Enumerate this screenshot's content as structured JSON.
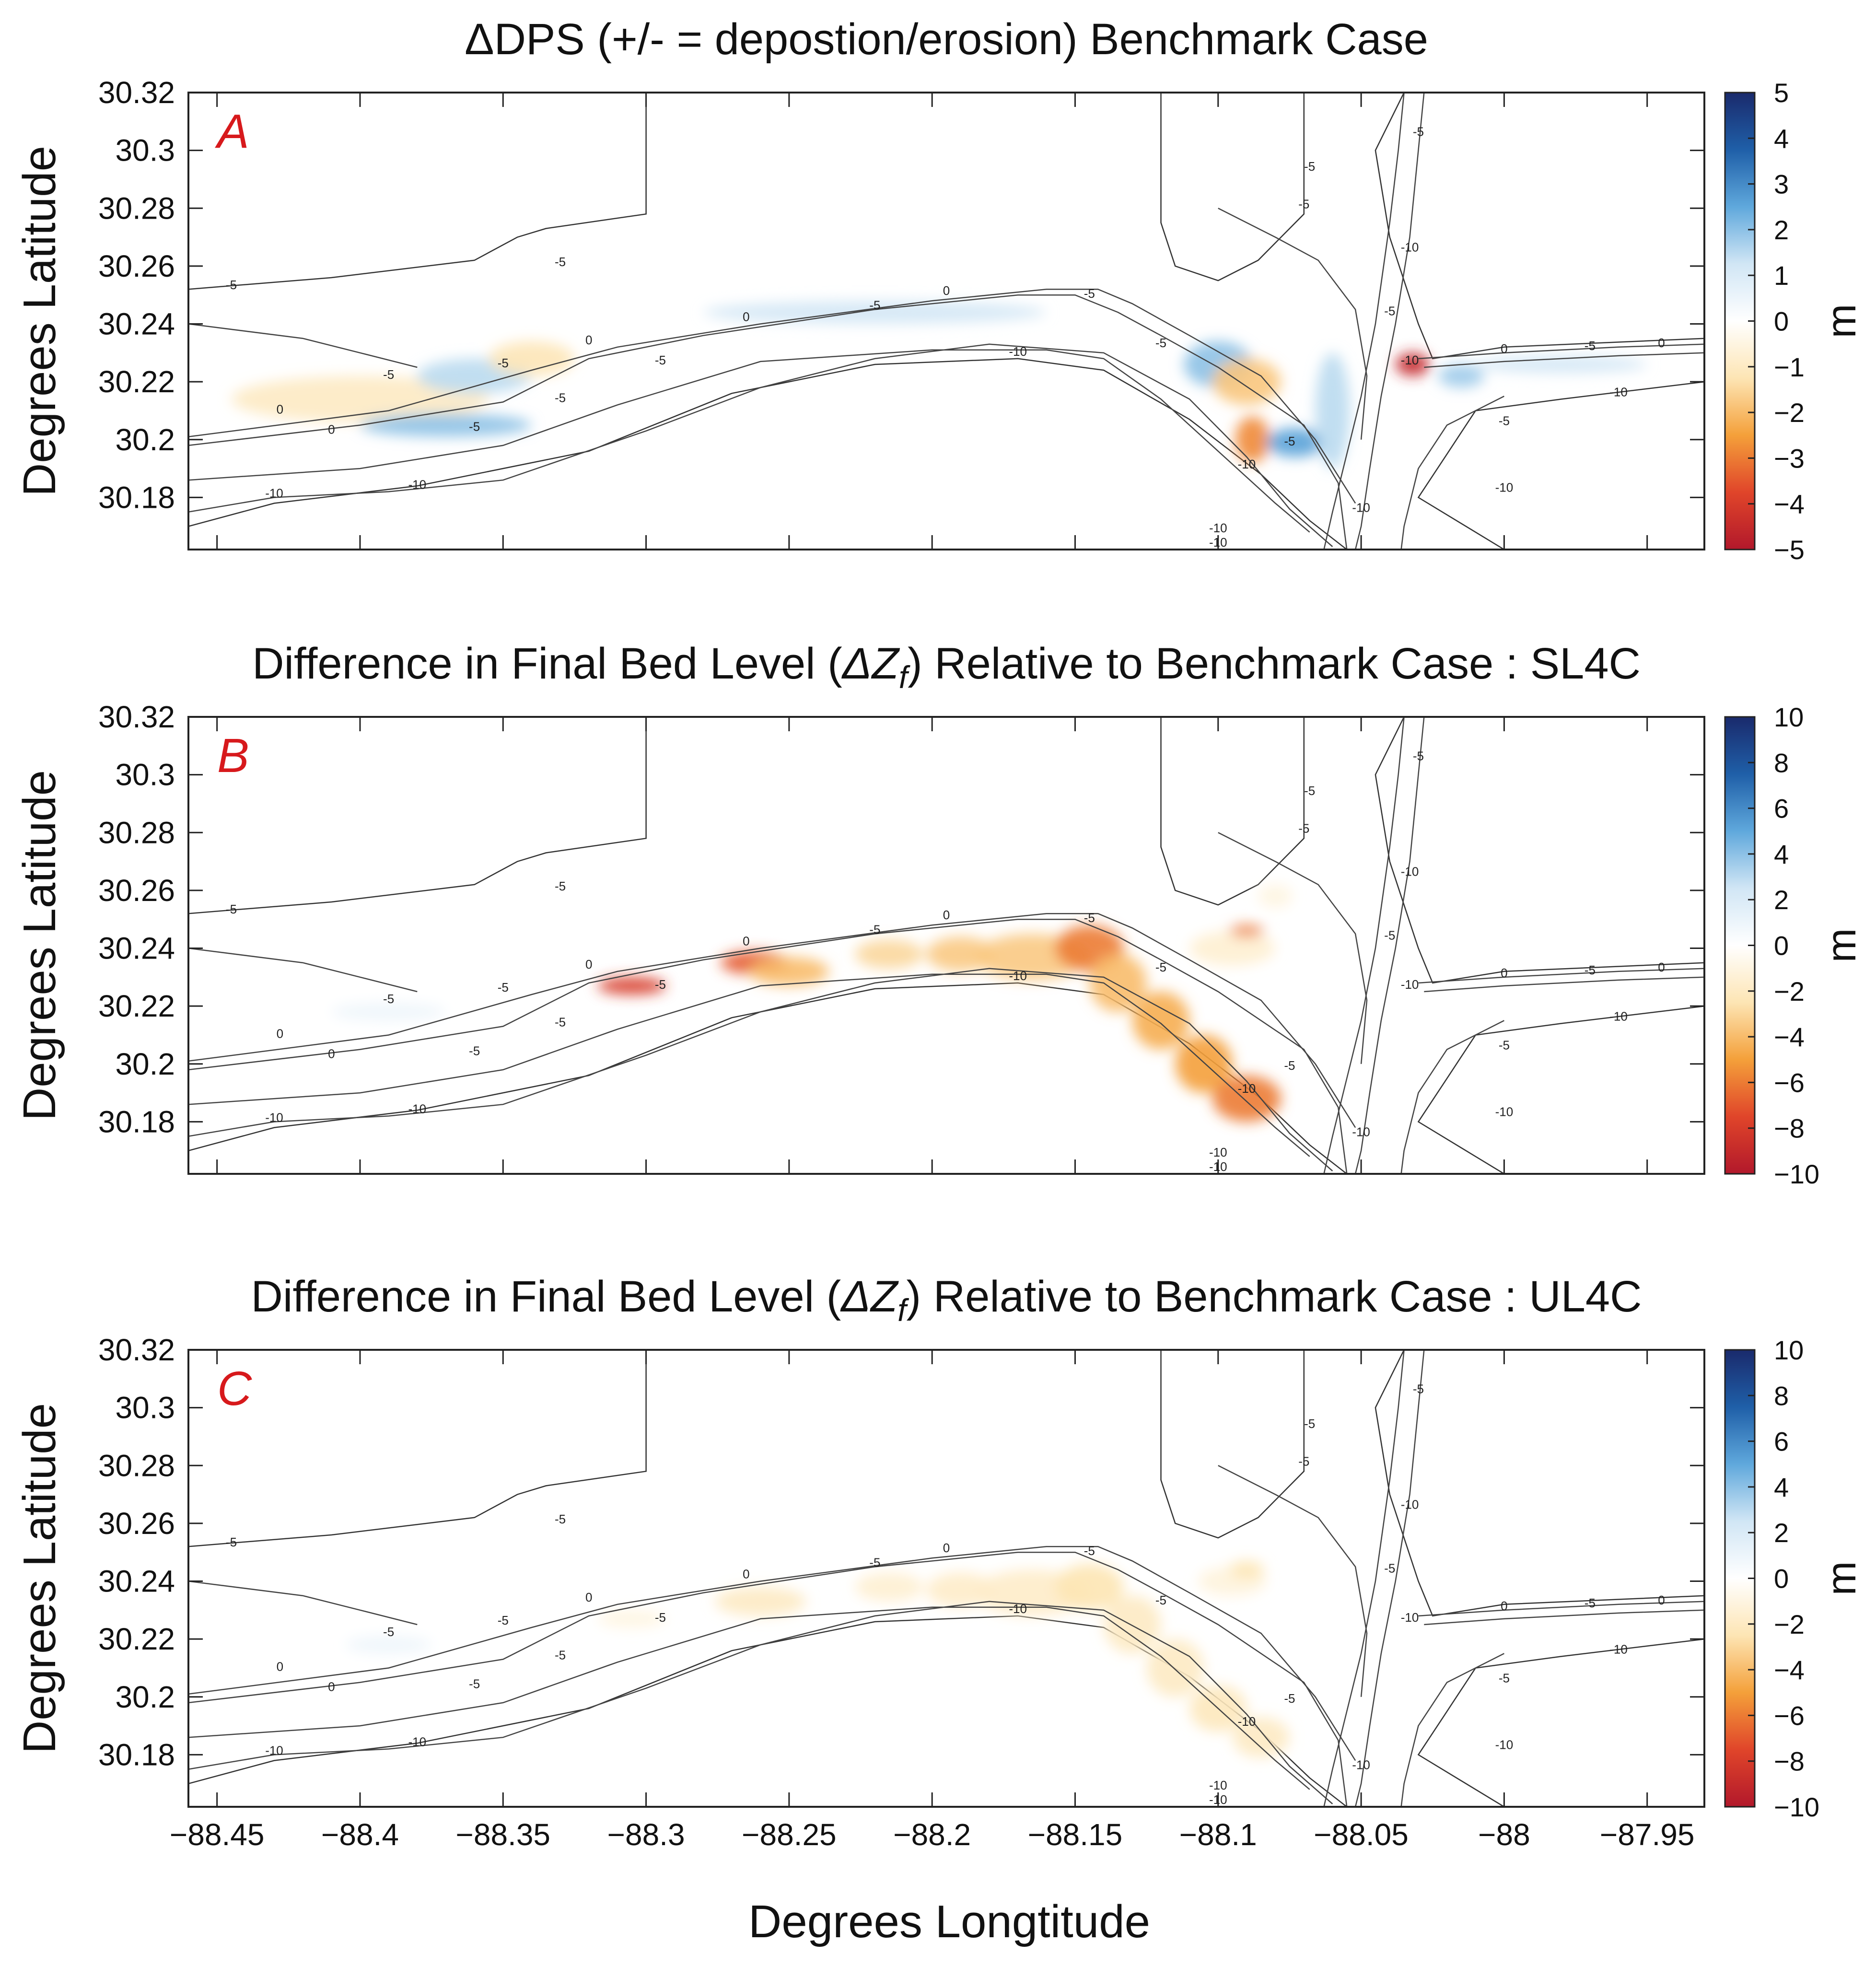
{
  "figure": {
    "x_axis_label": "Degrees Longtitude"
  },
  "chart_data": [
    {
      "type": "heatmap",
      "panel_letter": "A",
      "title_parts": [
        "ΔDPS (+/- = depostion/erosion) Benchmark Case"
      ],
      "ylabel": "Degrees Latitude",
      "xlabel": "Degrees Longtitude",
      "xlim": [
        -88.46,
        -87.93
      ],
      "ylim": [
        30.162,
        30.32
      ],
      "x_ticks": [
        -88.45,
        -88.4,
        -88.35,
        -88.3,
        -88.25,
        -88.2,
        -88.15,
        -88.1,
        -88.05,
        -88,
        -87.95
      ],
      "x_tick_labels": [
        "−88.45",
        "−88.4",
        "−88.35",
        "−88.3",
        "−88.25",
        "−88.2",
        "−88.15",
        "−88.1",
        "−88.05",
        "−88",
        "−87.95"
      ],
      "y_ticks": [
        30.32,
        30.3,
        30.28,
        30.26,
        30.24,
        30.22,
        30.2,
        30.18
      ],
      "y_tick_labels": [
        "30.32",
        "30.3",
        "30.28",
        "30.26",
        "30.24",
        "30.22",
        "30.2",
        "30.18"
      ],
      "show_x_tick_labels": false,
      "colorbar": {
        "label": "m",
        "min": -5,
        "max": 5,
        "ticks": [
          5,
          4,
          3,
          2,
          1,
          0,
          -1,
          -2,
          -3,
          -4,
          -5
        ],
        "tick_labels": [
          "5",
          "4",
          "3",
          "2",
          "1",
          "0",
          "−1",
          "−2",
          "−3",
          "−4",
          "−5"
        ],
        "colormap": [
          "#b2182b",
          "#e0452a",
          "#f4a03a",
          "#fde5b4",
          "#ffffff",
          "#d1e6f5",
          "#5fa8dc",
          "#1f5fa8",
          "#1a2a6c"
        ]
      },
      "patches": [
        {
          "lon": -88.4,
          "lat": 30.214,
          "value": -1.0,
          "spread_lon": 0.045,
          "spread_lat": 0.008
        },
        {
          "lon": -88.36,
          "lat": 30.222,
          "value": 1.5,
          "spread_lon": 0.02,
          "spread_lat": 0.006
        },
        {
          "lon": -88.34,
          "lat": 30.228,
          "value": -1.2,
          "spread_lon": 0.015,
          "spread_lat": 0.006
        },
        {
          "lon": -88.37,
          "lat": 30.205,
          "value": 2.0,
          "spread_lon": 0.03,
          "spread_lat": 0.004
        },
        {
          "lon": -88.22,
          "lat": 30.244,
          "value": 1.2,
          "spread_lon": 0.06,
          "spread_lat": 0.004
        },
        {
          "lon": -88.1,
          "lat": 30.226,
          "value": 2.0,
          "spread_lon": 0.012,
          "spread_lat": 0.008
        },
        {
          "lon": -88.09,
          "lat": 30.22,
          "value": -1.8,
          "spread_lon": 0.012,
          "spread_lat": 0.008
        },
        {
          "lon": -88.088,
          "lat": 30.2,
          "value": -2.8,
          "spread_lon": 0.006,
          "spread_lat": 0.008
        },
        {
          "lon": -88.073,
          "lat": 30.199,
          "value": 2.6,
          "spread_lon": 0.01,
          "spread_lat": 0.005
        },
        {
          "lon": -88.06,
          "lat": 30.21,
          "value": 1.5,
          "spread_lon": 0.006,
          "spread_lat": 0.02
        },
        {
          "lon": -88.032,
          "lat": 30.226,
          "value": -4.5,
          "spread_lon": 0.006,
          "spread_lat": 0.004
        },
        {
          "lon": -88.015,
          "lat": 30.222,
          "value": 1.8,
          "spread_lon": 0.008,
          "spread_lat": 0.004
        },
        {
          "lon": -87.98,
          "lat": 30.226,
          "value": 1.2,
          "spread_lon": 0.03,
          "spread_lat": 0.003
        }
      ]
    },
    {
      "type": "heatmap",
      "panel_letter": "B",
      "title_parts": [
        "Difference in Final Bed Level (",
        "ΔZ",
        "f",
        ") Relative to Benchmark Case : SL4C"
      ],
      "ylabel": "Degrees Latitude",
      "xlabel": "Degrees Longtitude",
      "xlim": [
        -88.46,
        -87.93
      ],
      "ylim": [
        30.162,
        30.32
      ],
      "x_ticks": [
        -88.45,
        -88.4,
        -88.35,
        -88.3,
        -88.25,
        -88.2,
        -88.15,
        -88.1,
        -88.05,
        -88,
        -87.95
      ],
      "x_tick_labels": [
        "−88.45",
        "−88.4",
        "−88.35",
        "−88.3",
        "−88.25",
        "−88.2",
        "−88.15",
        "−88.1",
        "−88.05",
        "−88",
        "−87.95"
      ],
      "y_ticks": [
        30.32,
        30.3,
        30.28,
        30.26,
        30.24,
        30.22,
        30.2,
        30.18
      ],
      "y_tick_labels": [
        "30.32",
        "30.3",
        "30.28",
        "30.26",
        "30.24",
        "30.22",
        "30.2",
        "30.18"
      ],
      "show_x_tick_labels": false,
      "colorbar": {
        "label": "m",
        "min": -10,
        "max": 10,
        "ticks": [
          10,
          8,
          6,
          4,
          2,
          0,
          -2,
          -4,
          -6,
          -8,
          -10
        ],
        "tick_labels": [
          "10",
          "8",
          "6",
          "4",
          "2",
          "0",
          "−2",
          "−4",
          "−6",
          "−8",
          "−10"
        ],
        "colormap": [
          "#b2182b",
          "#e0452a",
          "#f4a03a",
          "#fde5b4",
          "#ffffff",
          "#d1e6f5",
          "#5fa8dc",
          "#1f5fa8",
          "#1a2a6c"
        ]
      },
      "patches": [
        {
          "lon": -88.305,
          "lat": 30.227,
          "value": -8.0,
          "spread_lon": 0.012,
          "spread_lat": 0.003
        },
        {
          "lon": -88.262,
          "lat": 30.235,
          "value": -7.0,
          "spread_lon": 0.012,
          "spread_lat": 0.004
        },
        {
          "lon": -88.25,
          "lat": 30.232,
          "value": -4.0,
          "spread_lon": 0.014,
          "spread_lat": 0.005
        },
        {
          "lon": -88.215,
          "lat": 30.238,
          "value": -3.0,
          "spread_lon": 0.012,
          "spread_lat": 0.005
        },
        {
          "lon": -88.19,
          "lat": 30.238,
          "value": -3.5,
          "spread_lon": 0.012,
          "spread_lat": 0.006
        },
        {
          "lon": -88.165,
          "lat": 30.237,
          "value": -3.5,
          "spread_lon": 0.02,
          "spread_lat": 0.008
        },
        {
          "lon": -88.145,
          "lat": 30.24,
          "value": -6.0,
          "spread_lon": 0.012,
          "spread_lat": 0.008
        },
        {
          "lon": -88.135,
          "lat": 30.228,
          "value": -4.0,
          "spread_lon": 0.01,
          "spread_lat": 0.01
        },
        {
          "lon": -88.12,
          "lat": 30.215,
          "value": -4.5,
          "spread_lon": 0.01,
          "spread_lat": 0.01
        },
        {
          "lon": -88.105,
          "lat": 30.2,
          "value": -5.0,
          "spread_lon": 0.01,
          "spread_lat": 0.01
        },
        {
          "lon": -88.09,
          "lat": 30.188,
          "value": -6.0,
          "spread_lon": 0.012,
          "spread_lat": 0.008
        },
        {
          "lon": -88.095,
          "lat": 30.24,
          "value": -1.5,
          "spread_lon": 0.015,
          "spread_lat": 0.006
        },
        {
          "lon": -88.09,
          "lat": 30.246,
          "value": -6.0,
          "spread_lon": 0.006,
          "spread_lat": 0.002
        },
        {
          "lon": -88.08,
          "lat": 30.258,
          "value": -1.0,
          "spread_lon": 0.006,
          "spread_lat": 0.004
        },
        {
          "lon": -88.39,
          "lat": 30.218,
          "value": 1.0,
          "spread_lon": 0.02,
          "spread_lat": 0.003
        }
      ]
    },
    {
      "type": "heatmap",
      "panel_letter": "C",
      "title_parts": [
        "Difference in Final Bed Level (",
        "ΔZ",
        "f",
        ") Relative to Benchmark Case : UL4C"
      ],
      "ylabel": "Degrees Latitude",
      "xlabel": "Degrees Longtitude",
      "xlim": [
        -88.46,
        -87.93
      ],
      "ylim": [
        30.162,
        30.32
      ],
      "x_ticks": [
        -88.45,
        -88.4,
        -88.35,
        -88.3,
        -88.25,
        -88.2,
        -88.15,
        -88.1,
        -88.05,
        -88,
        -87.95
      ],
      "x_tick_labels": [
        "−88.45",
        "−88.4",
        "−88.35",
        "−88.3",
        "−88.25",
        "−88.2",
        "−88.15",
        "−88.1",
        "−88.05",
        "−88",
        "−87.95"
      ],
      "y_ticks": [
        30.32,
        30.3,
        30.28,
        30.26,
        30.24,
        30.22,
        30.2,
        30.18
      ],
      "y_tick_labels": [
        "30.32",
        "30.3",
        "30.28",
        "30.26",
        "30.24",
        "30.22",
        "30.2",
        "30.18"
      ],
      "show_x_tick_labels": true,
      "colorbar": {
        "label": "m",
        "min": -10,
        "max": 10,
        "ticks": [
          10,
          8,
          6,
          4,
          2,
          0,
          -2,
          -4,
          -6,
          -8,
          -10
        ],
        "tick_labels": [
          "10",
          "8",
          "6",
          "4",
          "2",
          "0",
          "−2",
          "−4",
          "−6",
          "−8",
          "−10"
        ],
        "colormap": [
          "#b2182b",
          "#e0452a",
          "#f4a03a",
          "#fde5b4",
          "#ffffff",
          "#d1e6f5",
          "#5fa8dc",
          "#1f5fa8",
          "#1a2a6c"
        ]
      },
      "patches": [
        {
          "lon": -88.305,
          "lat": 30.227,
          "value": -1.0,
          "spread_lon": 0.012,
          "spread_lat": 0.003
        },
        {
          "lon": -88.26,
          "lat": 30.233,
          "value": -2.0,
          "spread_lon": 0.016,
          "spread_lat": 0.005
        },
        {
          "lon": -88.215,
          "lat": 30.238,
          "value": -1.5,
          "spread_lon": 0.012,
          "spread_lat": 0.005
        },
        {
          "lon": -88.19,
          "lat": 30.237,
          "value": -1.8,
          "spread_lon": 0.012,
          "spread_lat": 0.006
        },
        {
          "lon": -88.165,
          "lat": 30.236,
          "value": -1.8,
          "spread_lon": 0.02,
          "spread_lat": 0.008
        },
        {
          "lon": -88.145,
          "lat": 30.238,
          "value": -2.5,
          "spread_lon": 0.012,
          "spread_lat": 0.008
        },
        {
          "lon": -88.13,
          "lat": 30.225,
          "value": -2.0,
          "spread_lon": 0.01,
          "spread_lat": 0.01
        },
        {
          "lon": -88.115,
          "lat": 30.21,
          "value": -2.0,
          "spread_lon": 0.01,
          "spread_lat": 0.01
        },
        {
          "lon": -88.1,
          "lat": 30.196,
          "value": -2.2,
          "spread_lon": 0.01,
          "spread_lat": 0.008
        },
        {
          "lon": -88.085,
          "lat": 30.186,
          "value": -2.0,
          "spread_lon": 0.01,
          "spread_lat": 0.007
        },
        {
          "lon": -88.095,
          "lat": 30.24,
          "value": -1.2,
          "spread_lon": 0.012,
          "spread_lat": 0.005
        },
        {
          "lon": -88.09,
          "lat": 30.244,
          "value": -2.5,
          "spread_lon": 0.006,
          "spread_lat": 0.003
        },
        {
          "lon": -88.39,
          "lat": 30.218,
          "value": 1.0,
          "spread_lon": 0.015,
          "spread_lat": 0.003
        }
      ]
    }
  ]
}
